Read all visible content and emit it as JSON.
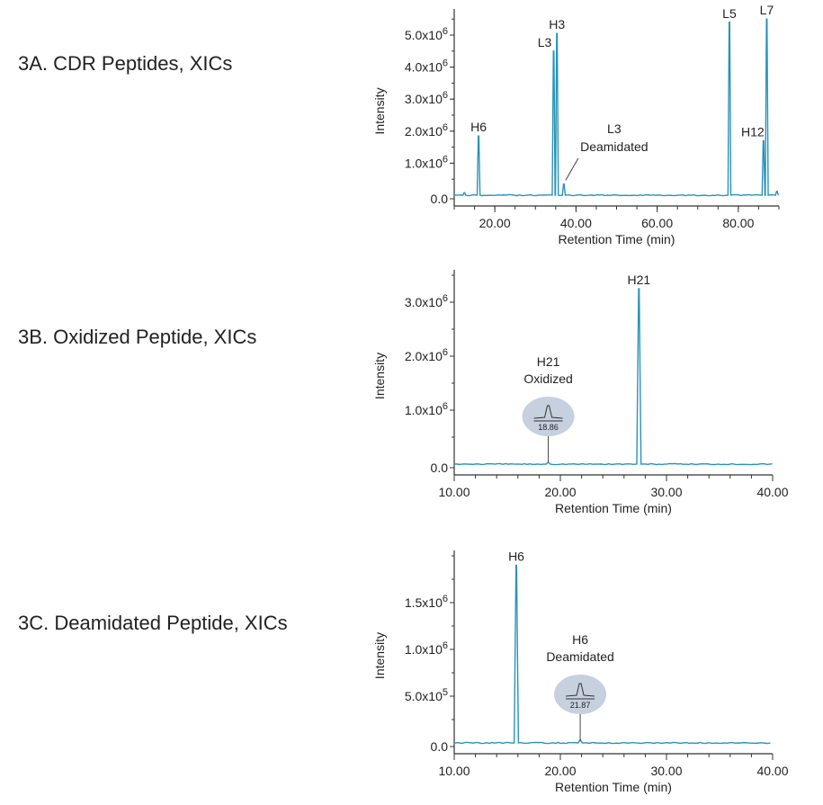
{
  "colors": {
    "trace": "#2a93b8",
    "axis": "#333333",
    "inset_fill": "#c6d0df"
  },
  "chart_data": [
    {
      "type": "line",
      "title": "3A. CDR Peptides, XICs",
      "xlabel": "Retention Time (min)",
      "ylabel": "Intensity",
      "xlim": [
        10,
        90
      ],
      "ylim": [
        0,
        5800000.0
      ],
      "xticks": [
        {
          "v": 20,
          "label": "20.00"
        },
        {
          "v": 40,
          "label": "40.00"
        },
        {
          "v": 60,
          "label": "60.00"
        },
        {
          "v": 80,
          "label": "80.00"
        }
      ],
      "xminor": 5,
      "yticks": [
        {
          "v": 0,
          "label": "0.0"
        },
        {
          "v": 1000000.0,
          "label": "1.0x10^6"
        },
        {
          "v": 2000000.0,
          "label": "2.0x10^6"
        },
        {
          "v": 3000000.0,
          "label": "3.0x10^6"
        },
        {
          "v": 4000000.0,
          "label": "4.0x10^6"
        },
        {
          "v": 5000000.0,
          "label": "5.0x10^6"
        }
      ],
      "peaks": [
        {
          "x": 12.5,
          "y": 80000.0
        },
        {
          "x": 16.0,
          "y": 1850000.0,
          "label": "H6"
        },
        {
          "x": 34.5,
          "y": 4500000.0,
          "label": "L3"
        },
        {
          "x": 35.3,
          "y": 5050000.0,
          "label": "H3"
        },
        {
          "x": 37.0,
          "y": 350000.0,
          "label": "L3 Deamidated"
        },
        {
          "x": 77.8,
          "y": 5400000.0,
          "label": "L5"
        },
        {
          "x": 86.2,
          "y": 1700000.0,
          "label": "H12"
        },
        {
          "x": 87.0,
          "y": 5500000.0,
          "label": "L7"
        },
        {
          "x": 89.5,
          "y": 120000.0
        }
      ]
    },
    {
      "type": "line",
      "title": "3B. Oxidized Peptide, XICs",
      "xlabel": "Retention Time (min)",
      "ylabel": "Intensity",
      "xlim": [
        10,
        40
      ],
      "ylim": [
        0,
        3600000.0
      ],
      "xticks": [
        {
          "v": 10,
          "label": "10.00"
        },
        {
          "v": 20,
          "label": "20.00"
        },
        {
          "v": 30,
          "label": "30.00"
        },
        {
          "v": 40,
          "label": "40.00"
        }
      ],
      "xminor": 2,
      "yticks": [
        {
          "v": 0,
          "label": "0.0"
        },
        {
          "v": 1000000.0,
          "label": "1.0x10^6"
        },
        {
          "v": 2000000.0,
          "label": "2.0x10^6"
        },
        {
          "v": 3000000.0,
          "label": "3.0x10^6"
        }
      ],
      "peaks": [
        {
          "x": 18.86,
          "y": 30000.0,
          "label": "H21 Oxidized",
          "inset": "18.86"
        },
        {
          "x": 27.4,
          "y": 3250000.0,
          "label": "H21"
        }
      ]
    },
    {
      "type": "line",
      "title": "3C. Deamidated Peptide, XICs",
      "xlabel": "Retention Time (min)",
      "ylabel": "Intensity",
      "xlim": [
        10,
        40
      ],
      "ylim": [
        0,
        2050000.0
      ],
      "xticks": [
        {
          "v": 10,
          "label": "10.00"
        },
        {
          "v": 20,
          "label": "20.00"
        },
        {
          "v": 30,
          "label": "30.00"
        },
        {
          "v": 40,
          "label": "40.00"
        }
      ],
      "xminor": 2,
      "yticks": [
        {
          "v": 0,
          "label": "0.0"
        },
        {
          "v": 500000.0,
          "label": "5.0x10^5"
        },
        {
          "v": 1000000.0,
          "label": "1.0x10^6"
        },
        {
          "v": 1500000.0,
          "label": "1.5x10^6"
        }
      ],
      "peaks": [
        {
          "x": 15.85,
          "y": 1900000.0,
          "label": "H6"
        },
        {
          "x": 21.87,
          "y": 30000.0,
          "label": "H6 Deamidated",
          "inset": "21.87"
        }
      ]
    }
  ]
}
